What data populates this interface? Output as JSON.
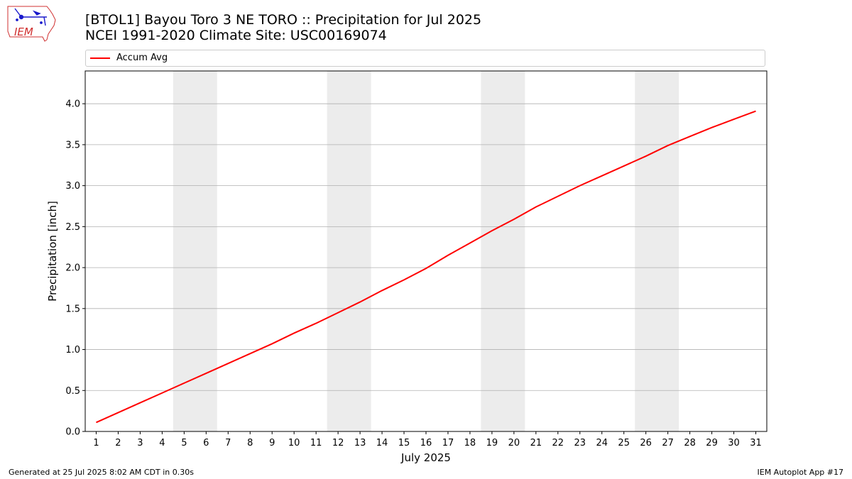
{
  "header": {
    "title_line1": "[BTOL1] Bayou Toro 3 NE TORO :: Precipitation for Jul 2025",
    "title_line2": "NCEI 1991-2020 Climate Site: USC00169074",
    "logo_text": "IEM"
  },
  "legend": {
    "label": "Accum Avg"
  },
  "footer": {
    "left": "Generated at 25 Jul 2025 8:02 AM CDT in 0.30s",
    "right": "IEM Autoplot App #17"
  },
  "colors": {
    "line": "#ff0000",
    "weekend_band": "#ececec",
    "grid": "#b0b0b0"
  },
  "chart_data": {
    "type": "line",
    "xlabel": "July 2025",
    "ylabel": "Precipitation [inch]",
    "xlim": [
      0.5,
      31.5
    ],
    "ylim": [
      0.0,
      4.4
    ],
    "yticks": [
      0.0,
      0.5,
      1.0,
      1.5,
      2.0,
      2.5,
      3.0,
      3.5,
      4.0
    ],
    "ytick_labels": [
      "0.0",
      "0.5",
      "1.0",
      "1.5",
      "2.0",
      "2.5",
      "3.0",
      "3.5",
      "4.0"
    ],
    "xticks": [
      1,
      2,
      3,
      4,
      5,
      6,
      7,
      8,
      9,
      10,
      11,
      12,
      13,
      14,
      15,
      16,
      17,
      18,
      19,
      20,
      21,
      22,
      23,
      24,
      25,
      26,
      27,
      28,
      29,
      30,
      31
    ],
    "x_grid": false,
    "y_grid": true,
    "weekend_bands": [
      [
        5,
        6
      ],
      [
        12,
        13
      ],
      [
        19,
        20
      ],
      [
        26,
        27
      ]
    ],
    "series": [
      {
        "name": "Accum Avg",
        "x": [
          1,
          2,
          3,
          4,
          5,
          6,
          7,
          8,
          9,
          10,
          11,
          12,
          13,
          14,
          15,
          16,
          17,
          18,
          19,
          20,
          21,
          22,
          23,
          24,
          25,
          26,
          27,
          28,
          29,
          30,
          31
        ],
        "values": [
          0.11,
          0.23,
          0.35,
          0.47,
          0.59,
          0.71,
          0.83,
          0.95,
          1.07,
          1.2,
          1.32,
          1.45,
          1.58,
          1.72,
          1.85,
          1.99,
          2.15,
          2.3,
          2.45,
          2.59,
          2.74,
          2.87,
          3.0,
          3.12,
          3.24,
          3.36,
          3.49,
          3.6,
          3.71,
          3.81,
          3.91
        ]
      }
    ]
  }
}
